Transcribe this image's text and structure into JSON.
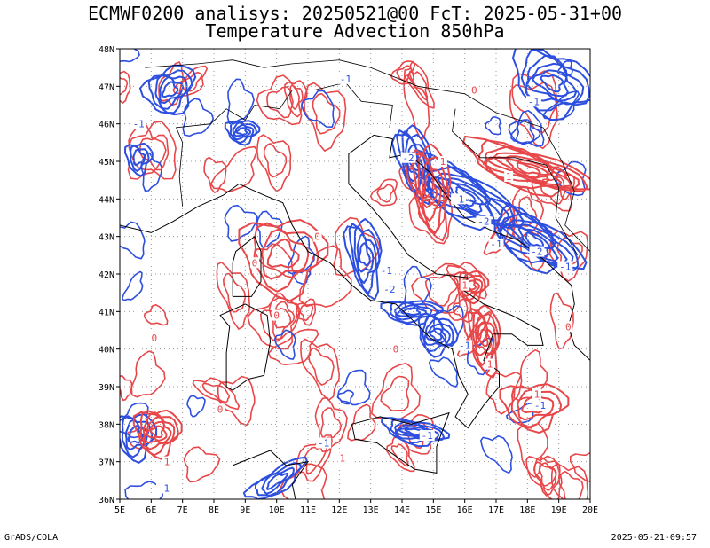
{
  "title_line1": "ECMWF0200 analisys: 20250521@00 FcT: 2025-05-31+00",
  "title_line2": "Temperature Advection 850hPa",
  "footer_left": "GrADS/COLA",
  "footer_right": "2025-05-21-09:57",
  "map": {
    "lon_range": [
      5,
      20
    ],
    "lat_range": [
      36,
      48
    ],
    "lon_labels": [
      "5E",
      "6E",
      "7E",
      "8E",
      "9E",
      "10E",
      "11E",
      "12E",
      "13E",
      "14E",
      "15E",
      "16E",
      "17E",
      "18E",
      "19E",
      "20E"
    ],
    "lat_labels": [
      "36N",
      "37N",
      "38N",
      "39N",
      "40N",
      "41N",
      "42N",
      "43N",
      "44N",
      "45N",
      "46N",
      "47N",
      "48N"
    ],
    "grid": "dotted",
    "colors": {
      "warm_advection": "#e8474a",
      "cold_advection": "#2d4fe0",
      "coastline": "#000000",
      "grid": "#9a9a9a"
    },
    "contour_labels": [
      {
        "text": "-1",
        "lon": 5.6,
        "lat": 46.0,
        "sign": "neg"
      },
      {
        "text": "-1",
        "lon": 12.2,
        "lat": 47.2,
        "sign": "neg"
      },
      {
        "text": "-1",
        "lon": 18.2,
        "lat": 46.6,
        "sign": "neg"
      },
      {
        "text": "-1",
        "lon": 13.5,
        "lat": 42.1,
        "sign": "neg"
      },
      {
        "text": "-2",
        "lon": 13.6,
        "lat": 41.6,
        "sign": "neg"
      },
      {
        "text": "-2",
        "lon": 14.2,
        "lat": 45.1,
        "sign": "neg"
      },
      {
        "text": "-2",
        "lon": 16.6,
        "lat": 43.4,
        "sign": "neg"
      },
      {
        "text": "-1",
        "lon": 17.0,
        "lat": 42.8,
        "sign": "neg"
      },
      {
        "text": "-2",
        "lon": 18.3,
        "lat": 42.6,
        "sign": "neg"
      },
      {
        "text": "-1",
        "lon": 19.2,
        "lat": 42.2,
        "sign": "neg"
      },
      {
        "text": "-1",
        "lon": 15.8,
        "lat": 44.0,
        "sign": "neg"
      },
      {
        "text": "-1",
        "lon": 14.8,
        "lat": 37.7,
        "sign": "neg"
      },
      {
        "text": "-1",
        "lon": 11.5,
        "lat": 37.5,
        "sign": "neg"
      },
      {
        "text": "-1",
        "lon": 6.4,
        "lat": 36.3,
        "sign": "neg"
      },
      {
        "text": "-1",
        "lon": 18.4,
        "lat": 38.5,
        "sign": "neg"
      },
      {
        "text": "-1",
        "lon": 16.0,
        "lat": 40.1,
        "sign": "neg"
      },
      {
        "text": "1",
        "lon": 15.3,
        "lat": 45.0,
        "sign": "pos"
      },
      {
        "text": "1",
        "lon": 17.4,
        "lat": 44.6,
        "sign": "pos"
      },
      {
        "text": "1",
        "lon": 16.0,
        "lat": 41.7,
        "sign": "pos"
      },
      {
        "text": "1",
        "lon": 16.8,
        "lat": 39.6,
        "sign": "pos"
      },
      {
        "text": "1",
        "lon": 18.3,
        "lat": 38.8,
        "sign": "pos"
      },
      {
        "text": "1",
        "lon": 12.1,
        "lat": 37.1,
        "sign": "pos"
      },
      {
        "text": "1",
        "lon": 6.5,
        "lat": 37.0,
        "sign": "pos"
      },
      {
        "text": "0",
        "lon": 9.3,
        "lat": 42.3,
        "sign": "pos"
      },
      {
        "text": "0",
        "lon": 10.0,
        "lat": 40.9,
        "sign": "pos"
      },
      {
        "text": "0",
        "lon": 6.1,
        "lat": 40.3,
        "sign": "pos"
      },
      {
        "text": "0",
        "lon": 11.3,
        "lat": 43.0,
        "sign": "pos"
      },
      {
        "text": "0",
        "lon": 13.8,
        "lat": 40.0,
        "sign": "pos"
      },
      {
        "text": "0",
        "lon": 16.3,
        "lat": 46.9,
        "sign": "pos"
      },
      {
        "text": "0",
        "lon": 19.3,
        "lat": 40.6,
        "sign": "pos"
      },
      {
        "text": "0",
        "lon": 8.2,
        "lat": 38.4,
        "sign": "pos"
      }
    ]
  }
}
